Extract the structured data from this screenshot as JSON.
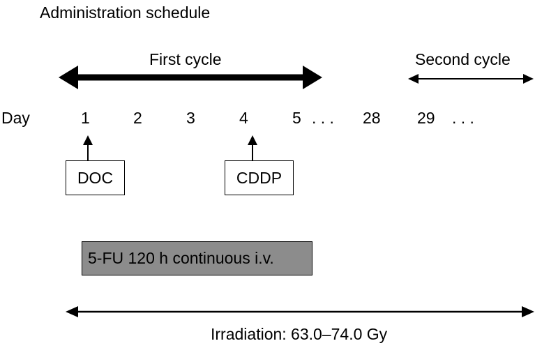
{
  "title": "Administration schedule",
  "cycles": {
    "first": "First cycle",
    "second": "Second cycle"
  },
  "day_axis": {
    "label": "Day",
    "days": [
      "1",
      "2",
      "3",
      "4",
      "5",
      "28",
      "29"
    ],
    "ellipsis": ". . ."
  },
  "drugs": {
    "doc": "DOC",
    "cddp": "CDDP",
    "infusion": "5-FU 120 h continuous i.v."
  },
  "irradiation": "Irradiation: 63.0–74.0 Gy",
  "colors": {
    "infusion_fill": "#8c8c8c",
    "line": "#000000"
  }
}
